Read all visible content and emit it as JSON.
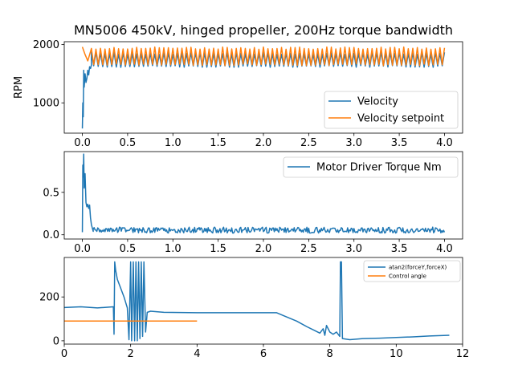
{
  "chart_data": [
    {
      "type": "line",
      "title": "MN5006 450kV, hinged propeller, 200Hz torque bandwidth",
      "xlabel": "",
      "ylabel": "RPM",
      "xlim": [
        -0.2,
        4.2
      ],
      "ylim": [
        480,
        2050
      ],
      "xticks": [
        "0.0",
        "0.5",
        "1.0",
        "1.5",
        "2.0",
        "2.5",
        "3.0",
        "3.5",
        "4.0"
      ],
      "yticks": [
        "1000",
        "2000"
      ],
      "legend": "lower-right",
      "series": [
        {
          "name": "Velocity",
          "color": "#1f77b4",
          "points": [
            [
              0.0,
              560
            ],
            [
              0.005,
              1000
            ],
            [
              0.01,
              760
            ],
            [
              0.015,
              1560
            ],
            [
              0.02,
              1270
            ],
            [
              0.03,
              1500
            ],
            [
              0.04,
              1350
            ],
            [
              0.05,
              1420
            ],
            [
              0.06,
              1560
            ],
            [
              0.07,
              1480
            ],
            [
              0.08,
              1620
            ],
            [
              0.09,
              1590
            ],
            [
              0.1,
              1650
            ],
            [
              0.15,
              1680
            ],
            [
              0.2,
              1700
            ],
            [
              0.5,
              1700
            ],
            [
              1.0,
              1700
            ],
            [
              2.0,
              1700
            ],
            [
              3.0,
              1700
            ],
            [
              4.0,
              1700
            ]
          ],
          "steady_band": {
            "x": [
              0.1,
              4.0
            ],
            "min": 1610,
            "max": 1870
          }
        },
        {
          "name": "Velocity setpoint",
          "color": "#ff7f0e",
          "points": [
            [
              0.0,
              1960
            ],
            [
              0.03,
              1830
            ],
            [
              0.06,
              1720
            ],
            [
              0.09,
              1880
            ],
            [
              0.12,
              1640
            ],
            [
              4.0,
              1880
            ]
          ],
          "steady_band": {
            "x": [
              0.1,
              4.0
            ],
            "min": 1640,
            "max": 1960
          }
        }
      ]
    },
    {
      "type": "line",
      "title": "",
      "xlabel": "",
      "ylabel": "",
      "xlim": [
        -0.2,
        4.2
      ],
      "ylim": [
        -0.05,
        0.98
      ],
      "xticks": [
        "0.0",
        "0.5",
        "1.0",
        "1.5",
        "2.0",
        "2.5",
        "3.0",
        "3.5",
        "4.0"
      ],
      "yticks": [
        "0.0",
        "0.5"
      ],
      "legend": "top-right",
      "series": [
        {
          "name": "Motor Driver Torque Nm",
          "color": "#1f77b4",
          "points": [
            [
              0.0,
              0.03
            ],
            [
              0.005,
              0.82
            ],
            [
              0.01,
              0.68
            ],
            [
              0.015,
              0.95
            ],
            [
              0.02,
              0.55
            ],
            [
              0.03,
              0.72
            ],
            [
              0.04,
              0.38
            ],
            [
              0.05,
              0.33
            ],
            [
              0.06,
              0.36
            ],
            [
              0.07,
              0.31
            ],
            [
              0.08,
              0.35
            ],
            [
              0.09,
              0.2
            ],
            [
              0.1,
              0.12
            ],
            [
              0.12,
              0.04
            ],
            [
              0.15,
              0.06
            ],
            [
              0.2,
              0.04
            ],
            [
              0.3,
              0.05
            ],
            [
              4.0,
              0.05
            ]
          ],
          "steady_band": {
            "x": [
              0.12,
              4.0
            ],
            "min": 0.02,
            "max": 0.09
          }
        }
      ]
    },
    {
      "type": "line",
      "title": "",
      "xlabel": "",
      "ylabel": "",
      "xlim": [
        0,
        12
      ],
      "ylim": [
        -15,
        380
      ],
      "xticks": [
        "0",
        "2",
        "4",
        "6",
        "8",
        "10",
        "12"
      ],
      "yticks": [
        "0",
        "200"
      ],
      "legend": "top-right",
      "series": [
        {
          "name": "atan2(forceY,forceX)",
          "color": "#1f77b4",
          "points": [
            [
              0,
              152
            ],
            [
              0.5,
              155
            ],
            [
              1.0,
              150
            ],
            [
              1.48,
              155
            ],
            [
              1.5,
              30
            ],
            [
              1.52,
              360
            ],
            [
              1.55,
              320
            ],
            [
              1.6,
              280
            ],
            [
              1.7,
              240
            ],
            [
              1.8,
              200
            ],
            [
              1.9,
              150
            ],
            [
              1.95,
              5
            ],
            [
              2.0,
              360
            ],
            [
              2.03,
              0
            ],
            [
              2.08,
              360
            ],
            [
              2.12,
              0
            ],
            [
              2.16,
              360
            ],
            [
              2.2,
              0
            ],
            [
              2.24,
              360
            ],
            [
              2.28,
              10
            ],
            [
              2.32,
              360
            ],
            [
              2.36,
              20
            ],
            [
              2.4,
              360
            ],
            [
              2.45,
              40
            ],
            [
              2.5,
              130
            ],
            [
              2.6,
              135
            ],
            [
              3.0,
              130
            ],
            [
              4.0,
              128
            ],
            [
              5.0,
              128
            ],
            [
              6.0,
              128
            ],
            [
              6.4,
              128
            ],
            [
              6.6,
              115
            ],
            [
              7.0,
              90
            ],
            [
              7.3,
              65
            ],
            [
              7.5,
              50
            ],
            [
              7.7,
              35
            ],
            [
              7.8,
              55
            ],
            [
              7.85,
              25
            ],
            [
              7.9,
              70
            ],
            [
              8.0,
              40
            ],
            [
              8.1,
              30
            ],
            [
              8.2,
              40
            ],
            [
              8.3,
              20
            ],
            [
              8.32,
              360
            ],
            [
              8.35,
              360
            ],
            [
              8.38,
              10
            ],
            [
              8.6,
              5
            ],
            [
              9.0,
              10
            ],
            [
              9.5,
              12
            ],
            [
              10.0,
              15
            ],
            [
              10.5,
              18
            ],
            [
              11.0,
              22
            ],
            [
              11.6,
              25
            ]
          ]
        },
        {
          "name": "Control angle",
          "color": "#ff7f0e",
          "points": [
            [
              0,
              90
            ],
            [
              4.0,
              90
            ]
          ]
        }
      ]
    }
  ]
}
